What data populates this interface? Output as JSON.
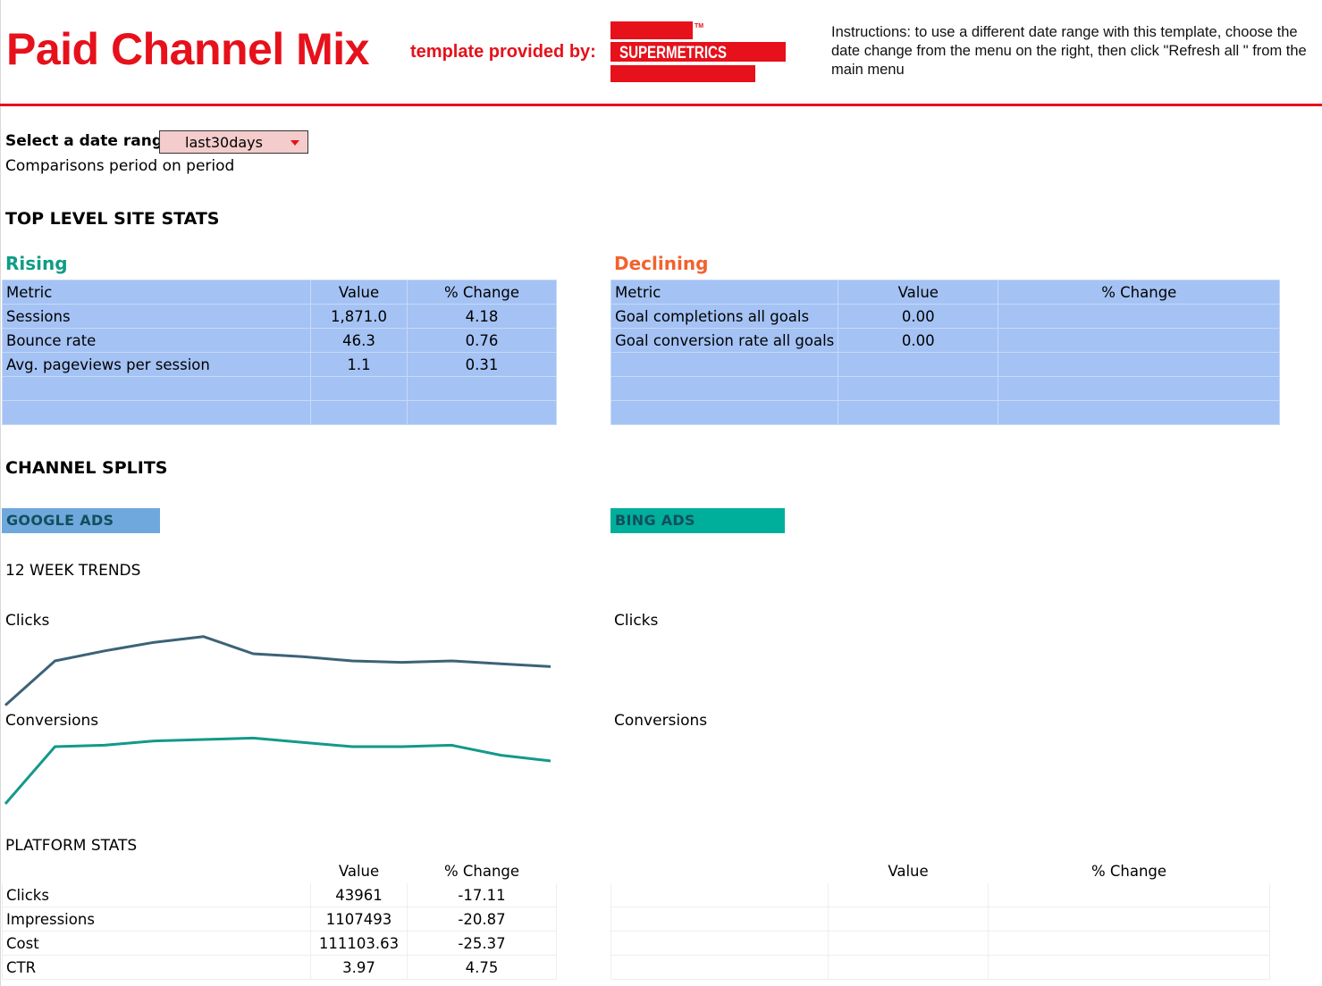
{
  "header": {
    "title": "Paid Channel Mix",
    "provided_by": "template provided by:",
    "logo_text": "SUPERMETRICS",
    "logo_tm": "TM",
    "instructions": "Instructions: to use a different date range with this template, choose the date change from the menu on the right, then click \"Refresh all \" from the main menu"
  },
  "controls": {
    "date_label": "Select a date range:",
    "date_value": "last30days",
    "comparison_note": "Comparisons period on period"
  },
  "top_level": {
    "heading": "TOP LEVEL SITE STATS",
    "rising": {
      "title": "Rising",
      "headers": [
        "Metric",
        "Value",
        "% Change"
      ],
      "rows": [
        [
          "Sessions",
          "1,871.0",
          "4.18"
        ],
        [
          "Bounce rate",
          "46.3",
          "0.76"
        ],
        [
          "Avg. pageviews per session",
          "1.1",
          "0.31"
        ],
        [
          "",
          "",
          ""
        ],
        [
          "",
          "",
          ""
        ]
      ]
    },
    "declining": {
      "title": "Declining",
      "headers": [
        "Metric",
        "Value",
        "% Change"
      ],
      "rows": [
        [
          "Goal completions all goals",
          "0.00",
          ""
        ],
        [
          "Goal conversion rate all goals",
          "0.00",
          ""
        ],
        [
          "",
          "",
          ""
        ],
        [
          "",
          "",
          ""
        ],
        [
          "",
          "",
          ""
        ]
      ]
    }
  },
  "channel_splits": {
    "heading": "CHANNEL SPLITS",
    "google": {
      "tag": "GOOGLE ADS",
      "trends_heading": "12 WEEK TRENDS",
      "clicks_label": "Clicks",
      "conversions_label": "Conversions",
      "platform_heading": "PLATFORM STATS",
      "platform_headers": [
        "",
        "Value",
        "% Change"
      ],
      "platform_rows": [
        [
          "Clicks",
          "43961",
          "-17.11"
        ],
        [
          "Impressions",
          "1107493",
          "-20.87"
        ],
        [
          "Cost",
          "111103.63",
          "-25.37"
        ],
        [
          "CTR",
          "3.97",
          "4.75"
        ]
      ]
    },
    "bing": {
      "tag": "BING ADS",
      "clicks_label": "Clicks",
      "conversions_label": "Conversions",
      "platform_headers": [
        "",
        "Value",
        "% Change"
      ],
      "platform_rows": [
        [
          "",
          "",
          ""
        ],
        [
          "",
          "",
          ""
        ],
        [
          "",
          "",
          ""
        ],
        [
          "",
          "",
          ""
        ]
      ]
    }
  },
  "colors": {
    "brand_red": "#e6111b",
    "rising_green": "#0f9d86",
    "declining_orange": "#f2622e",
    "table_blue": "#a4c2f4",
    "google_tag": "#6fa8dc",
    "bing_tag": "#00ae9c",
    "clicks_line": "#3d6278",
    "conversions_line": "#13998a"
  },
  "chart_data": [
    {
      "type": "line",
      "series": [
        {
          "values": [
            4,
            35,
            42,
            48,
            52,
            40,
            38,
            35,
            34,
            35,
            33,
            31
          ]
        }
      ],
      "ylim": [
        0,
        60
      ]
    },
    {
      "type": "line",
      "series": [
        {
          "values": [
            5,
            45,
            46,
            49,
            50,
            51,
            48,
            45,
            45,
            46,
            39,
            35
          ]
        }
      ],
      "ylim": [
        0,
        60
      ]
    }
  ]
}
